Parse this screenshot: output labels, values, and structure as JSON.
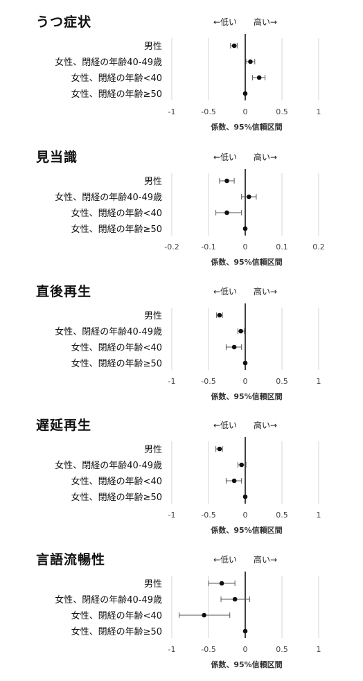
{
  "labels": {
    "low": "←低い",
    "high": "高い→",
    "xlabel": "係数、95%信頼区間"
  },
  "panels": [
    {
      "title": "うつ症状"
    },
    {
      "title": "見当識"
    },
    {
      "title": "直後再生"
    },
    {
      "title": "遅延再生"
    },
    {
      "title": "言語流暢性"
    }
  ],
  "chart_data": [
    {
      "type": "scatter",
      "title": "うつ症状",
      "xlabel": "係数、95%信頼区間",
      "categories": [
        "男性",
        "女性、閉経の年齢40-49歳",
        "女性、閉経の年齢<40",
        "女性、閉経の年齢≥50"
      ],
      "estimates": [
        -0.15,
        0.07,
        0.19,
        0
      ],
      "ci_low": [
        -0.2,
        0.01,
        0.1,
        0
      ],
      "ci_high": [
        -0.11,
        0.13,
        0.27,
        0
      ],
      "xlim": [
        -1,
        1
      ],
      "xticks": [
        -1,
        -0.5,
        0,
        0.5,
        1
      ],
      "xtick_labels": [
        "-1",
        "-0.5",
        "0",
        "0.5",
        "1"
      ]
    },
    {
      "type": "scatter",
      "title": "見当識",
      "xlabel": "係数、95%信頼区間",
      "categories": [
        "男性",
        "女性、閉経の年齢40-49歳",
        "女性、閉経の年齢<40",
        "女性、閉経の年齢≥50"
      ],
      "estimates": [
        -0.05,
        0.01,
        -0.05,
        0
      ],
      "ci_low": [
        -0.07,
        -0.01,
        -0.08,
        0
      ],
      "ci_high": [
        -0.03,
        0.03,
        -0.01,
        0
      ],
      "xlim": [
        -0.2,
        0.2
      ],
      "xticks": [
        -0.2,
        -0.1,
        0,
        0.1,
        0.2
      ],
      "xtick_labels": [
        "-0.2",
        "-0.1",
        "0",
        "0.1",
        "0.2"
      ]
    },
    {
      "type": "scatter",
      "title": "直後再生",
      "xlabel": "係数、95%信頼区間",
      "categories": [
        "男性",
        "女性、閉経の年齢40-49歳",
        "女性、閉経の年齢<40",
        "女性、閉経の年齢≥50"
      ],
      "estimates": [
        -0.35,
        -0.06,
        -0.15,
        0
      ],
      "ci_low": [
        -0.39,
        -0.1,
        -0.26,
        0
      ],
      "ci_high": [
        -0.31,
        -0.01,
        -0.05,
        0
      ],
      "xlim": [
        -1,
        1
      ],
      "xticks": [
        -1,
        -0.5,
        0,
        0.5,
        1
      ],
      "xtick_labels": [
        "-1",
        "-0.5",
        "0",
        "0.5",
        "1"
      ]
    },
    {
      "type": "scatter",
      "title": "遅延再生",
      "xlabel": "係数、95%信頼区間",
      "categories": [
        "男性",
        "女性、閉経の年齢40-49歳",
        "女性、閉経の年齢<40",
        "女性、閉経の年齢≥50"
      ],
      "estimates": [
        -0.35,
        -0.05,
        -0.15,
        0
      ],
      "ci_low": [
        -0.4,
        -0.1,
        -0.26,
        0
      ],
      "ci_high": [
        -0.31,
        0.01,
        -0.05,
        0
      ],
      "xlim": [
        -1,
        1
      ],
      "xticks": [
        -1,
        -0.5,
        0,
        0.5,
        1
      ],
      "xtick_labels": [
        "-1",
        "-0.5",
        "0",
        "0.5",
        "1"
      ]
    },
    {
      "type": "scatter",
      "title": "言語流暢性",
      "xlabel": "係数、95%信頼区間",
      "categories": [
        "男性",
        "女性、閉経の年齢40-49歳",
        "女性、閉経の年齢<40",
        "女性、閉経の年齢≥50"
      ],
      "estimates": [
        -0.32,
        -0.14,
        -0.56,
        0
      ],
      "ci_low": [
        -0.5,
        -0.33,
        -0.9,
        0
      ],
      "ci_high": [
        -0.14,
        0.06,
        -0.21,
        0
      ],
      "xlim": [
        -1,
        1
      ],
      "xticks": [
        -1,
        -0.5,
        0,
        0.5,
        1
      ],
      "xtick_labels": [
        "-1",
        "-0.5",
        "0",
        "0.5",
        "1"
      ]
    }
  ]
}
